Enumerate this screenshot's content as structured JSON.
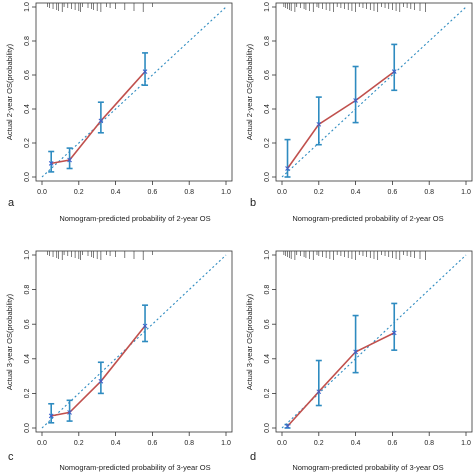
{
  "chart_data": [
    {
      "type": "line",
      "panel_label": "a",
      "xlabel": "Nomogram-predicted probability of 2-year OS",
      "ylabel": "Actual 2-year OS(probability)",
      "xlim": [
        0,
        1.0
      ],
      "ylim": [
        0,
        1.0
      ],
      "xticks": [
        "0.0",
        "0.2",
        "0.4",
        "0.6",
        "0.8",
        "1.0"
      ],
      "yticks": [
        "0.0",
        "0.2",
        "0.4",
        "0.6",
        "0.8",
        "1.0"
      ],
      "reference_line": "diagonal",
      "x": [
        0.05,
        0.15,
        0.32,
        0.56
      ],
      "y": [
        0.08,
        0.1,
        0.33,
        0.62
      ],
      "y_lower": [
        0.03,
        0.05,
        0.26,
        0.54
      ],
      "y_upper": [
        0.15,
        0.17,
        0.44,
        0.73
      ],
      "rug_x": [
        0.03,
        0.04,
        0.06,
        0.08,
        0.09,
        0.11,
        0.12,
        0.14,
        0.16,
        0.18,
        0.2,
        0.21,
        0.22,
        0.25,
        0.27,
        0.28,
        0.3,
        0.32,
        0.35,
        0.37,
        0.4,
        0.45,
        0.5,
        0.55,
        0.6
      ]
    },
    {
      "type": "line",
      "panel_label": "b",
      "xlabel": "Nomogram-predicted probability of 2-year OS",
      "ylabel": "Actual 2-year OS(probability)",
      "xlim": [
        0,
        1.0
      ],
      "ylim": [
        0,
        1.0
      ],
      "xticks": [
        "0.0",
        "0.2",
        "0.4",
        "0.6",
        "0.8",
        "1.0"
      ],
      "yticks": [
        "0.0",
        "0.2",
        "0.4",
        "0.6",
        "0.8",
        "1.0"
      ],
      "reference_line": "diagonal",
      "x": [
        0.03,
        0.2,
        0.4,
        0.61
      ],
      "y": [
        0.05,
        0.31,
        0.45,
        0.62
      ],
      "y_lower": [
        0.0,
        0.19,
        0.32,
        0.51
      ],
      "y_upper": [
        0.22,
        0.47,
        0.65,
        0.78
      ],
      "rug_x": [
        0.01,
        0.02,
        0.03,
        0.04,
        0.05,
        0.07,
        0.08,
        0.1,
        0.12,
        0.13,
        0.15,
        0.17,
        0.19,
        0.2,
        0.22,
        0.24,
        0.26,
        0.28,
        0.3,
        0.32,
        0.34,
        0.36,
        0.38,
        0.4,
        0.42,
        0.44,
        0.46,
        0.48,
        0.5,
        0.52,
        0.54,
        0.56,
        0.58,
        0.6,
        0.62,
        0.64,
        0.66,
        0.68,
        0.7,
        0.72,
        0.75,
        0.78
      ]
    },
    {
      "type": "line",
      "panel_label": "c",
      "xlabel": "Nomogram-predicted probability of 3-year OS",
      "ylabel": "Actual 3-year OS(probability)",
      "xlim": [
        0,
        1.0
      ],
      "ylim": [
        0,
        1.0
      ],
      "xticks": [
        "0.0",
        "0.2",
        "0.4",
        "0.6",
        "0.8",
        "1.0"
      ],
      "yticks": [
        "0.0",
        "0.2",
        "0.4",
        "0.6",
        "0.8",
        "1.0"
      ],
      "reference_line": "diagonal",
      "x": [
        0.05,
        0.15,
        0.32,
        0.56
      ],
      "y": [
        0.07,
        0.09,
        0.27,
        0.59
      ],
      "y_lower": [
        0.03,
        0.04,
        0.2,
        0.5
      ],
      "y_upper": [
        0.14,
        0.16,
        0.38,
        0.71
      ],
      "rug_x": [
        0.03,
        0.04,
        0.06,
        0.08,
        0.09,
        0.11,
        0.12,
        0.14,
        0.16,
        0.18,
        0.2,
        0.21,
        0.22,
        0.25,
        0.27,
        0.28,
        0.3,
        0.32,
        0.35,
        0.37,
        0.4,
        0.45,
        0.5,
        0.55,
        0.6
      ]
    },
    {
      "type": "line",
      "panel_label": "d",
      "xlabel": "Nomogram-predicted probability of 3-year OS",
      "ylabel": "Actual 3-year OS(probability)",
      "xlim": [
        0,
        1.0
      ],
      "ylim": [
        0,
        1.0
      ],
      "xticks": [
        "0.0",
        "0.2",
        "0.4",
        "0.6",
        "0.8",
        "1.0"
      ],
      "yticks": [
        "0.0",
        "0.2",
        "0.4",
        "0.6",
        "0.8",
        "1.0"
      ],
      "reference_line": "diagonal",
      "x": [
        0.03,
        0.2,
        0.4,
        0.61
      ],
      "y": [
        0.01,
        0.21,
        0.44,
        0.55
      ],
      "y_lower": [
        0.0,
        0.13,
        0.32,
        0.45
      ],
      "y_upper": [
        0.02,
        0.39,
        0.65,
        0.72
      ],
      "rug_x": [
        0.01,
        0.02,
        0.03,
        0.04,
        0.05,
        0.07,
        0.08,
        0.1,
        0.12,
        0.13,
        0.15,
        0.17,
        0.19,
        0.2,
        0.22,
        0.24,
        0.26,
        0.28,
        0.3,
        0.32,
        0.34,
        0.36,
        0.38,
        0.4,
        0.42,
        0.44,
        0.46,
        0.48,
        0.5,
        0.52,
        0.54,
        0.56,
        0.58,
        0.6,
        0.62,
        0.64,
        0.66,
        0.68,
        0.7,
        0.72,
        0.75,
        0.78
      ]
    }
  ],
  "colors": {
    "curve": "#c0504d",
    "error_bar": "#2e8bc0",
    "reference": "#2e8bc0",
    "point": "#3a5fcd",
    "axis": "#333333"
  }
}
